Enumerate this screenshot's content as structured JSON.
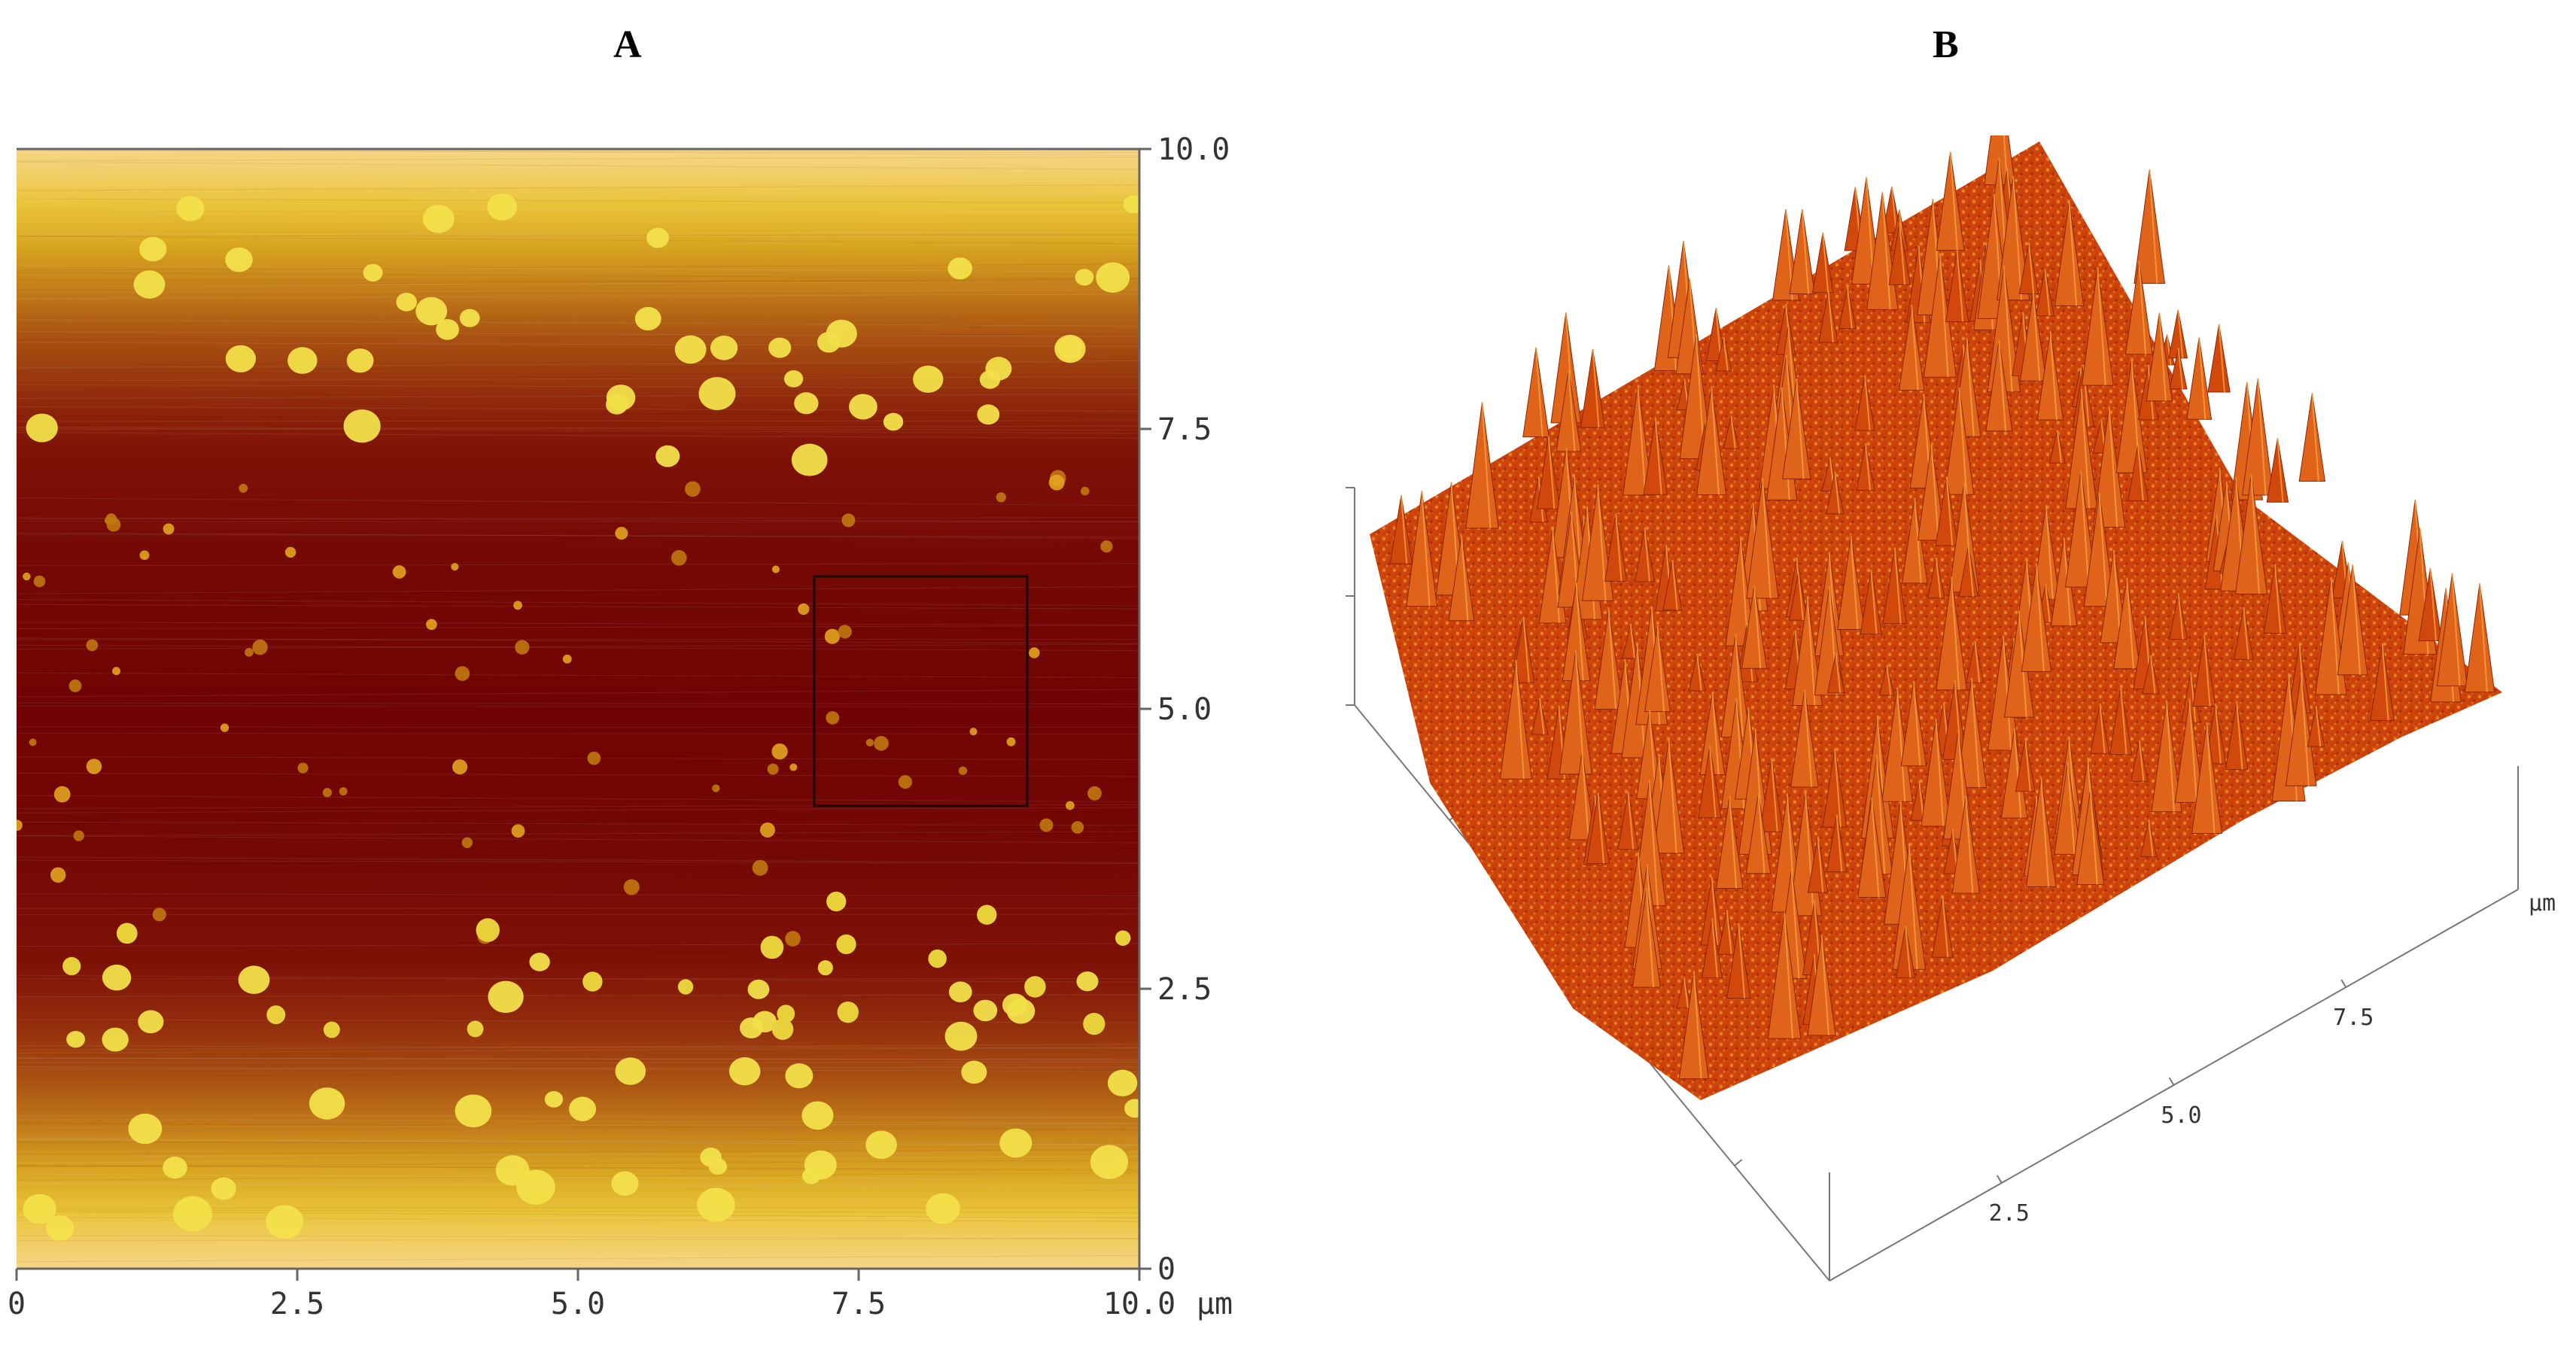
{
  "panels": {
    "a": {
      "label": "A"
    },
    "b": {
      "label": "B"
    }
  },
  "axis_a": {
    "x_ticks": [
      "0",
      "2.5",
      "5.0",
      "7.5",
      "10.0"
    ],
    "x_unit": "μm",
    "y_ticks": [
      "0",
      "2.5",
      "5.0",
      "7.5",
      "10.0"
    ]
  },
  "axis_b": {
    "front_ticks": [
      "2.5",
      "5.0",
      "7.5"
    ],
    "unit": "μm"
  },
  "colors": {
    "dark": "#700404",
    "mid": "#a85012",
    "bright": "#e9c338",
    "particle": "#f2e04a",
    "surface": "#d3470c",
    "surface_light": "#f08a2a"
  }
}
